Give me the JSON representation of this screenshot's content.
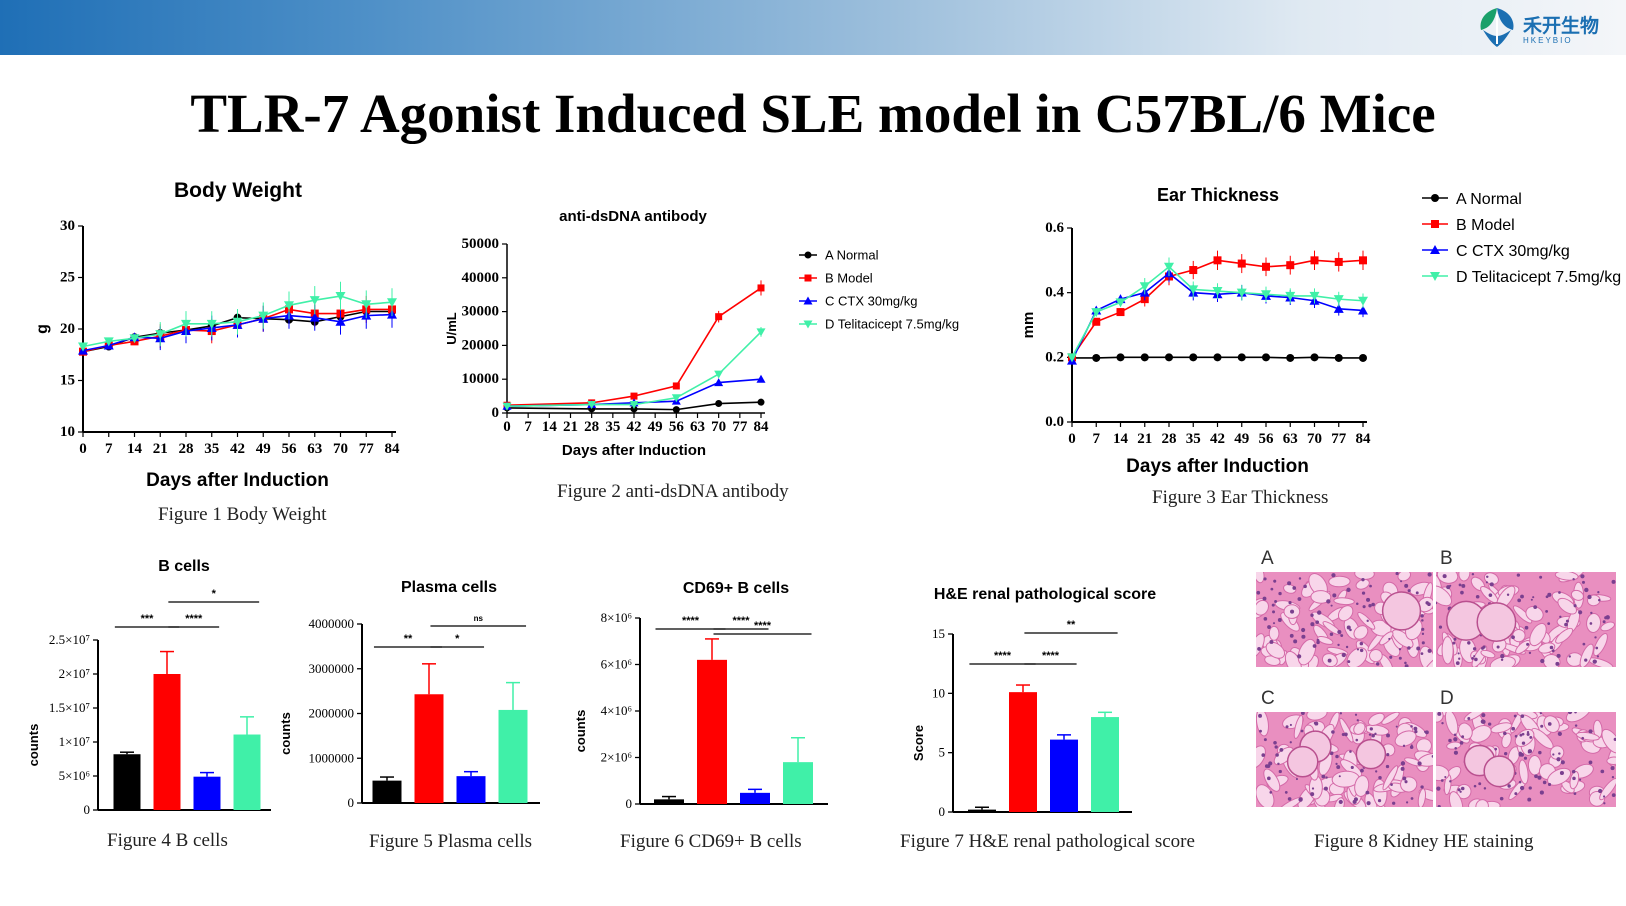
{
  "header": {
    "logo_cn": "禾开生物",
    "logo_en": "HKEYBIO",
    "title": "TLR-7 Agonist Induced SLE model in C57BL/6 Mice"
  },
  "colors": {
    "normal": "#000000",
    "model": "#ff0000",
    "ctx": "#0000ff",
    "telitacicept": "#40f0a8"
  },
  "legend": [
    "A Normal",
    "B Model",
    "C CTX 30mg/kg",
    "D Telitacicept 7.5mg/kg"
  ],
  "captions": {
    "fig1": "Figure 1 Body Weight",
    "fig2": "Figure 2 anti-dsDNA antibody",
    "fig3": "Figure 3 Ear Thickness",
    "fig4": "Figure 4 B cells",
    "fig5": "Figure 5 Plasma cells",
    "fig6": "Figure 6 CD69+ B cells",
    "fig7": "Figure 7 H&E renal pathological score",
    "fig8": "Figure 8 Kidney HE staining"
  },
  "he_panels": [
    "A",
    "B",
    "C",
    "D"
  ],
  "chart_data": [
    {
      "id": "body_weight",
      "type": "line",
      "title": "Body Weight",
      "xlabel": "Days after Induction",
      "ylabel": "g",
      "x": [
        0,
        7,
        14,
        21,
        28,
        35,
        42,
        49,
        56,
        63,
        70,
        77,
        84
      ],
      "x_ticks": [
        "0",
        "7",
        "14",
        "21",
        "28",
        "35",
        "42",
        "49",
        "56",
        "63",
        "70",
        "77",
        "84"
      ],
      "ylim": [
        10,
        30
      ],
      "y_ticks": [
        "10",
        "15",
        "20",
        "25",
        "30"
      ],
      "series": [
        {
          "name": "A Normal",
          "values": [
            17.8,
            18.3,
            19.2,
            19.6,
            19.9,
            20.3,
            21.1,
            21.0,
            20.9,
            20.7,
            21.2,
            21.7,
            21.7
          ]
        },
        {
          "name": "B Model",
          "values": [
            17.8,
            18.4,
            18.8,
            19.3,
            19.9,
            19.8,
            20.4,
            21.0,
            21.9,
            21.5,
            21.5,
            21.9,
            21.9
          ]
        },
        {
          "name": "C CTX 30mg/kg",
          "values": [
            17.9,
            18.4,
            19.2,
            19.1,
            19.8,
            20.1,
            20.4,
            21.0,
            21.3,
            21.1,
            20.7,
            21.3,
            21.4
          ]
        },
        {
          "name": "D Telitacicept 7.5mg/kg",
          "values": [
            18.3,
            18.8,
            19.1,
            19.5,
            20.5,
            20.5,
            20.7,
            21.3,
            22.3,
            22.8,
            23.2,
            22.4,
            22.6
          ]
        }
      ]
    },
    {
      "id": "anti_dsdna",
      "type": "line",
      "title": "anti-dsDNA antibody",
      "xlabel": "Days after Induction",
      "ylabel": "U/mL",
      "x": [
        0,
        28,
        42,
        56,
        70,
        84
      ],
      "x_ticks": [
        "0",
        "7",
        "14",
        "21",
        "28",
        "35",
        "42",
        "49",
        "56",
        "63",
        "70",
        "77",
        "84"
      ],
      "ylim": [
        0,
        50000
      ],
      "y_ticks": [
        "0",
        "10000",
        "20000",
        "30000",
        "40000",
        "50000"
      ],
      "series": [
        {
          "name": "A Normal",
          "values": [
            1500,
            1200,
            1200,
            1000,
            2800,
            3200
          ]
        },
        {
          "name": "B Model",
          "values": [
            2300,
            3000,
            5000,
            8000,
            28500,
            37000
          ]
        },
        {
          "name": "C CTX 30mg/kg",
          "values": [
            2000,
            2500,
            3000,
            3500,
            9000,
            10000
          ]
        },
        {
          "name": "D Telitacicept 7.5mg/kg",
          "values": [
            2000,
            2500,
            2500,
            4500,
            11500,
            24000
          ]
        }
      ]
    },
    {
      "id": "ear_thickness",
      "type": "line",
      "title": "Ear Thickness",
      "xlabel": "Days after Induction",
      "ylabel": "mm",
      "x": [
        0,
        7,
        14,
        21,
        28,
        35,
        42,
        49,
        56,
        63,
        70,
        77,
        84
      ],
      "x_ticks": [
        "0",
        "7",
        "14",
        "21",
        "28",
        "35",
        "42",
        "49",
        "56",
        "63",
        "70",
        "77",
        "84"
      ],
      "ylim": [
        0,
        0.6
      ],
      "y_ticks": [
        "0.0",
        "0.2",
        "0.4",
        "0.6"
      ],
      "series": [
        {
          "name": "A Normal",
          "values": [
            0.198,
            0.198,
            0.2,
            0.2,
            0.2,
            0.2,
            0.2,
            0.2,
            0.2,
            0.198,
            0.2,
            0.198,
            0.198
          ]
        },
        {
          "name": "B Model",
          "values": [
            0.2,
            0.31,
            0.34,
            0.38,
            0.45,
            0.47,
            0.5,
            0.49,
            0.48,
            0.485,
            0.5,
            0.495,
            0.5
          ]
        },
        {
          "name": "C CTX 30mg/kg",
          "values": [
            0.19,
            0.345,
            0.38,
            0.4,
            0.46,
            0.4,
            0.395,
            0.4,
            0.39,
            0.385,
            0.375,
            0.35,
            0.345
          ]
        },
        {
          "name": "D Telitacicept 7.5mg/kg",
          "values": [
            0.2,
            0.34,
            0.37,
            0.42,
            0.48,
            0.41,
            0.405,
            0.4,
            0.395,
            0.39,
            0.39,
            0.38,
            0.375
          ]
        }
      ]
    },
    {
      "id": "b_cells",
      "type": "bar",
      "title": "B cells",
      "ylabel": "counts",
      "categories": [
        "A Normal",
        "B Model",
        "C CTX 30mg/kg",
        "D Telitacicept 7.5mg/kg"
      ],
      "values": [
        8200000,
        20000000,
        4900000,
        11100000
      ],
      "errors": [
        300000,
        3300000,
        600000,
        2600000
      ],
      "ylim": [
        0,
        25000000
      ],
      "y_ticks": [
        "0",
        "5×10⁶",
        "1×10⁷",
        "1.5×10⁷",
        "2×10⁷",
        "2.5×10⁷"
      ],
      "significance": [
        {
          "from": 0,
          "to": 1,
          "label": "***"
        },
        {
          "from": 1,
          "to": 2,
          "label": "****"
        },
        {
          "from": 1,
          "to": 3,
          "label": "*"
        }
      ]
    },
    {
      "id": "plasma_cells",
      "type": "bar",
      "title": "Plasma cells",
      "ylabel": "counts",
      "categories": [
        "A Normal",
        "B Model",
        "C CTX 30mg/kg",
        "D Telitacicept 7.5mg/kg"
      ],
      "values": [
        500000,
        2430000,
        600000,
        2080000
      ],
      "errors": [
        80000,
        680000,
        100000,
        610000
      ],
      "ylim": [
        0,
        4000000
      ],
      "y_ticks": [
        "0",
        "1000000",
        "2000000",
        "3000000",
        "4000000"
      ],
      "significance": [
        {
          "from": 0,
          "to": 1,
          "label": "**"
        },
        {
          "from": 1,
          "to": 2,
          "label": "*"
        },
        {
          "from": 1,
          "to": 3,
          "label": "ns"
        }
      ]
    },
    {
      "id": "cd69_b_cells",
      "type": "bar",
      "title": "CD69+ B cells",
      "ylabel": "counts",
      "categories": [
        "A Normal",
        "B Model",
        "C CTX 30mg/kg",
        "D Telitacicept 7.5mg/kg"
      ],
      "values": [
        200000,
        6200000,
        480000,
        1800000
      ],
      "errors": [
        120000,
        900000,
        150000,
        1050000
      ],
      "ylim": [
        0,
        8000000
      ],
      "y_ticks": [
        "0",
        "2×10⁶",
        "4×10⁶",
        "6×10⁶",
        "8×10⁶"
      ],
      "significance": [
        {
          "from": 0,
          "to": 1,
          "label": "****"
        },
        {
          "from": 1,
          "to": 2,
          "label": "****"
        },
        {
          "from": 1,
          "to": 3,
          "label": "****"
        }
      ]
    },
    {
      "id": "he_score",
      "type": "bar",
      "title": "H&E renal pathological score",
      "ylabel": "Score",
      "categories": [
        "A Normal",
        "B Model",
        "C CTX 30mg/kg",
        "D Telitacicept 7.5mg/kg"
      ],
      "values": [
        0.2,
        10.1,
        6.1,
        8.0
      ],
      "errors": [
        0.2,
        0.6,
        0.4,
        0.4
      ],
      "ylim": [
        0,
        15
      ],
      "y_ticks": [
        "0",
        "5",
        "10",
        "15"
      ],
      "significance": [
        {
          "from": 0,
          "to": 1,
          "label": "****"
        },
        {
          "from": 1,
          "to": 2,
          "label": "****"
        },
        {
          "from": 1,
          "to": 3,
          "label": "**"
        }
      ]
    }
  ]
}
